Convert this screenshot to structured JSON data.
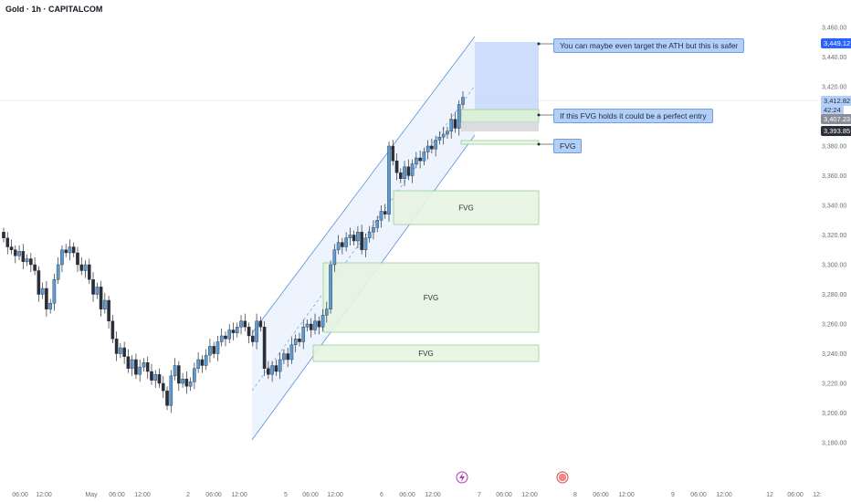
{
  "header": {
    "title": "Gold · 1h · CAPITALCOM"
  },
  "chart_data": {
    "type": "candlestick",
    "symbol": "Gold",
    "timeframe": "1h",
    "source": "CAPITALCOM",
    "y_ticks": [
      "3,460.00",
      "3,440.00",
      "3,420.00",
      "3,400.00",
      "3,380.00",
      "3,360.00",
      "3,340.00",
      "3,320.00",
      "3,300.00",
      "3,280.00",
      "3,260.00",
      "3,240.00",
      "3,220.00",
      "3,200.00",
      "3,180.00"
    ],
    "y_tick_values": [
      3460,
      3440,
      3420,
      3400,
      3380,
      3360,
      3340,
      3320,
      3300,
      3280,
      3260,
      3240,
      3220,
      3200,
      3180
    ],
    "x_ticks": [
      "06:00",
      "12:00",
      "May",
      "06:00",
      "12:00",
      "2",
      "06:00",
      "12:00",
      "5",
      "06:00",
      "12:00",
      "6",
      "06:00",
      "12:00",
      "7",
      "06:00",
      "12:00",
      "8",
      "06:00",
      "12:00",
      "9",
      "06:00",
      "12:00",
      "12",
      "06:00",
      "12:"
    ],
    "price_labels": {
      "target": "3,449.12",
      "current": "3,412.82",
      "countdown": "42:24",
      "level1": "3,407.23",
      "level2": "3,393.85"
    },
    "zones": [
      {
        "label": "FVG",
        "low": 3334,
        "high": 3356
      },
      {
        "label": "FVG",
        "low": 3266,
        "high": 3310
      },
      {
        "label": "FVG",
        "low": 3248,
        "high": 3260
      },
      {
        "label": "",
        "low": 3386,
        "high": 3390
      }
    ],
    "annotations": [
      {
        "text": "You can maybe even target the ATH but this is safer",
        "price": 3449.12
      },
      {
        "text": "If this FVG holds it could be a perfect entry",
        "price": 3407
      },
      {
        "text": "FVG",
        "price": 3388
      }
    ],
    "candles_close": [
      3318,
      3312,
      3310,
      3306,
      3309,
      3302,
      3304,
      3300,
      3296,
      3280,
      3284,
      3270,
      3274,
      3290,
      3300,
      3310,
      3308,
      3312,
      3308,
      3300,
      3296,
      3300,
      3290,
      3280,
      3285,
      3270,
      3276,
      3262,
      3250,
      3240,
      3244,
      3238,
      3230,
      3236,
      3226,
      3231,
      3234,
      3228,
      3222,
      3226,
      3220,
      3215,
      3205,
      3225,
      3232,
      3220,
      3223,
      3218,
      3221,
      3230,
      3236,
      3232,
      3239,
      3245,
      3240,
      3248,
      3252,
      3250,
      3256,
      3254,
      3258,
      3262,
      3258,
      3252,
      3248,
      3262,
      3258,
      3230,
      3226,
      3232,
      3228,
      3236,
      3240,
      3236,
      3246,
      3250,
      3248,
      3258,
      3260,
      3256,
      3262,
      3258,
      3266,
      3270,
      3300,
      3310,
      3315,
      3312,
      3318,
      3320,
      3316,
      3322,
      3310,
      3318,
      3322,
      3325,
      3330,
      3336,
      3334,
      3380,
      3370,
      3362,
      3358,
      3366,
      3360,
      3368,
      3372,
      3370,
      3376,
      3380,
      3378,
      3384,
      3386,
      3388,
      3390,
      3398,
      3392,
      3408,
      3412.82
    ]
  }
}
